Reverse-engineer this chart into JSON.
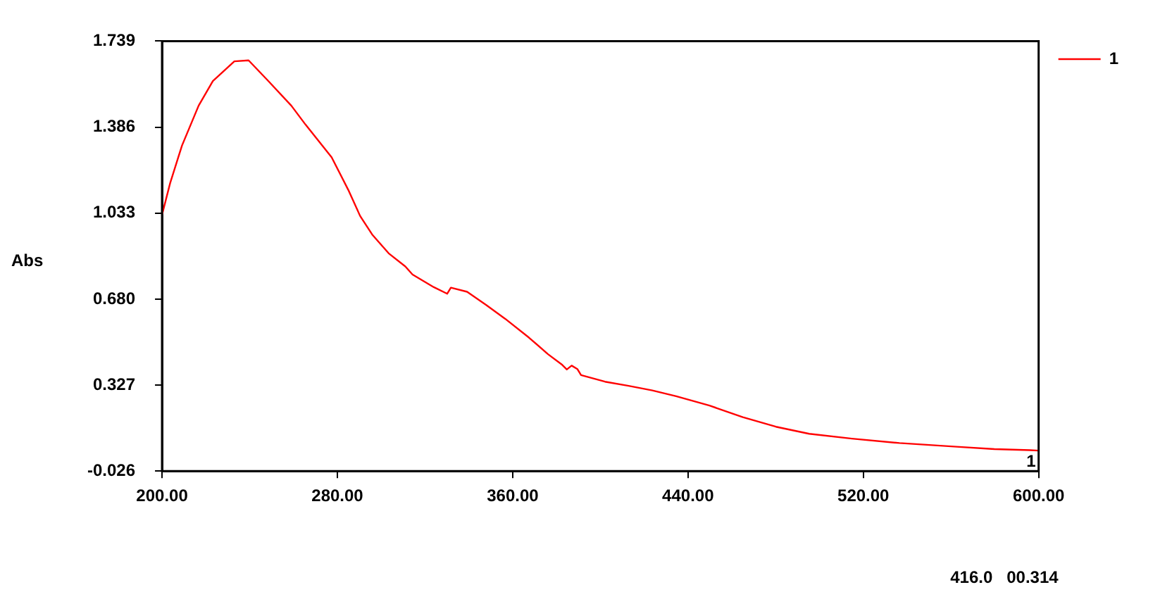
{
  "chart_data": {
    "type": "line",
    "ylabel": "Abs",
    "x": [
      200,
      203.7,
      209.1,
      216.7,
      223.2,
      233,
      239.5,
      248.1,
      259,
      265.5,
      277.4,
      285,
      290.4,
      295.9,
      303.4,
      311,
      314.3,
      324,
      330.1,
      331.8,
      339.2,
      347.9,
      356.6,
      367.4,
      376.1,
      382.6,
      384.7,
      386.9,
      389.5,
      391.2,
      402.1,
      412.9,
      423.7,
      434.6,
      449.8,
      465,
      480.1,
      495.3,
      514.8,
      536.5,
      562.5,
      579.8,
      596.1,
      600
    ],
    "series": [
      {
        "name": "1",
        "color": "#ff0000",
        "values": [
          1.026,
          1.156,
          1.31,
          1.474,
          1.575,
          1.656,
          1.66,
          1.579,
          1.474,
          1.396,
          1.262,
          1.128,
          1.021,
          0.945,
          0.868,
          0.814,
          0.781,
          0.729,
          0.702,
          0.727,
          0.71,
          0.656,
          0.599,
          0.522,
          0.454,
          0.41,
          0.391,
          0.407,
          0.393,
          0.368,
          0.341,
          0.324,
          0.305,
          0.281,
          0.243,
          0.195,
          0.156,
          0.127,
          0.107,
          0.089,
          0.074,
          0.064,
          0.06,
          0.058
        ]
      }
    ],
    "xlim": [
      200,
      600
    ],
    "ylim": [
      -0.026,
      1.739
    ],
    "xticks": [
      {
        "value": 200,
        "label": "200.00"
      },
      {
        "value": 280,
        "label": "280.00"
      },
      {
        "value": 360,
        "label": "360.00"
      },
      {
        "value": 440,
        "label": "440.00"
      },
      {
        "value": 520,
        "label": "520.00"
      },
      {
        "value": 600,
        "label": "600.00"
      }
    ],
    "yticks": [
      {
        "value": -0.026,
        "label": "-0.026"
      },
      {
        "value": 0.327,
        "label": "0.327"
      },
      {
        "value": 0.68,
        "label": "0.680"
      },
      1.033,
      1.386,
      1.739
    ],
    "annotations": [
      {
        "text": "1",
        "x": 600,
        "y": 0.058
      },
      "416.0   00.314"
    ],
    "grid": false,
    "legend": "top right",
    "marker": "none",
    "line_style": "solid"
  }
}
